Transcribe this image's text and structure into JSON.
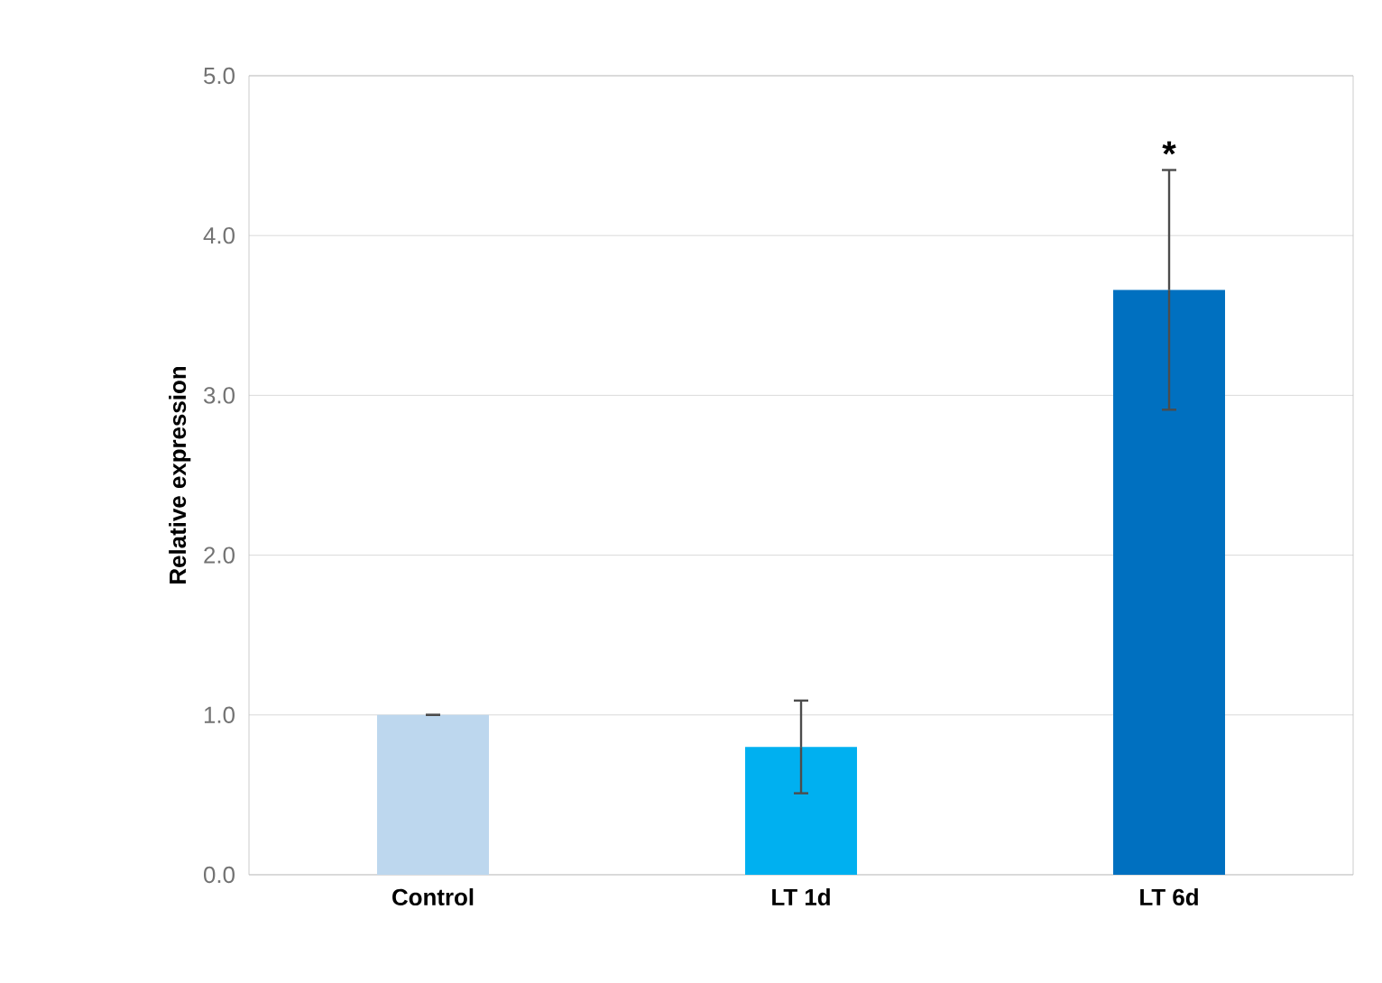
{
  "chart_data": {
    "type": "bar",
    "ylabel": "Relative expression",
    "categories": [
      "Control",
      "LT 1d",
      "LT 6d"
    ],
    "values": [
      1.0,
      0.8,
      3.66
    ],
    "errors": [
      0,
      0.29,
      0.75
    ],
    "colors": [
      "#bdd7ee",
      "#00b0f0",
      "#0070c0"
    ],
    "ylim": [
      0,
      5
    ],
    "yticks": [
      {
        "value": 0,
        "label": "0.0"
      },
      {
        "value": 1,
        "label": "1.0"
      },
      {
        "value": 2,
        "label": "2.0"
      },
      {
        "value": 3,
        "label": "3.0"
      },
      {
        "value": 4,
        "label": "4.0"
      },
      {
        "value": 5,
        "label": "5.0"
      }
    ],
    "grid": "y",
    "annotations": [
      {
        "text": "*",
        "x": "LT 6d",
        "y": 4.41
      }
    ]
  }
}
